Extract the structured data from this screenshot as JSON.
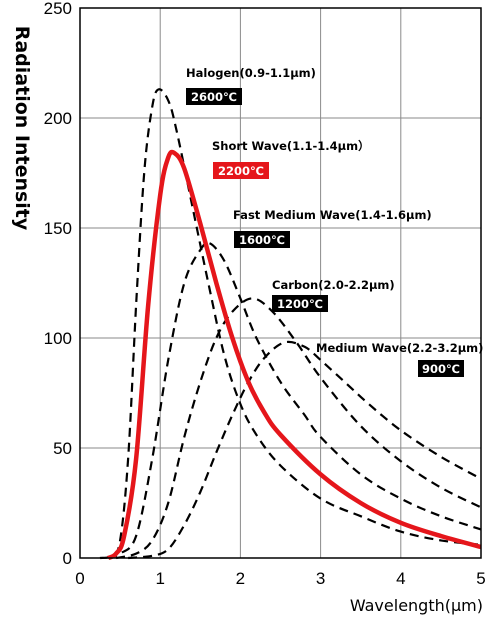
{
  "chart_data": {
    "type": "line",
    "title": "",
    "xlabel": "Wavelength(μm)",
    "ylabel": "Radiation Intensity",
    "xlim": [
      0,
      5
    ],
    "ylim": [
      0,
      250
    ],
    "x_ticks": [
      0,
      1,
      2,
      3,
      4,
      5
    ],
    "y_ticks": [
      0,
      50,
      100,
      150,
      200,
      250
    ],
    "grid": true,
    "series": [
      {
        "name": "Halogen(0.9-1.1μm)",
        "temperature_label": "2600℃",
        "style": "dashed",
        "color": "#000000",
        "label_color": "#000000",
        "peak": [
          0.98,
          213
        ],
        "points": [
          [
            0.25,
            0
          ],
          [
            0.4,
            1
          ],
          [
            0.5,
            8
          ],
          [
            0.6,
            45
          ],
          [
            0.7,
            115
          ],
          [
            0.8,
            175
          ],
          [
            0.9,
            205
          ],
          [
            0.98,
            213
          ],
          [
            1.1,
            208
          ],
          [
            1.2,
            195
          ],
          [
            1.4,
            160
          ],
          [
            1.6,
            125
          ],
          [
            1.8,
            92
          ],
          [
            2.0,
            70
          ],
          [
            2.2,
            56
          ],
          [
            2.5,
            42
          ],
          [
            3.0,
            27
          ],
          [
            3.5,
            19
          ],
          [
            4.0,
            12
          ],
          [
            4.5,
            8
          ],
          [
            5.0,
            6
          ]
        ]
      },
      {
        "name": "Short Wave(1.1-1.4μm）",
        "temperature_label": "2200℃",
        "style": "solid",
        "color": "#e5161b",
        "label_color": "#e5161b",
        "peak": [
          1.18,
          184
        ],
        "points": [
          [
            0.35,
            0
          ],
          [
            0.45,
            2
          ],
          [
            0.55,
            10
          ],
          [
            0.7,
            45
          ],
          [
            0.85,
            115
          ],
          [
            1.0,
            165
          ],
          [
            1.1,
            182
          ],
          [
            1.18,
            184
          ],
          [
            1.3,
            177
          ],
          [
            1.5,
            152
          ],
          [
            1.7,
            125
          ],
          [
            1.9,
            100
          ],
          [
            2.1,
            80
          ],
          [
            2.3,
            66
          ],
          [
            2.5,
            56
          ],
          [
            3.0,
            38
          ],
          [
            3.5,
            25
          ],
          [
            4.0,
            16
          ],
          [
            4.5,
            10
          ],
          [
            5.0,
            5
          ]
        ]
      },
      {
        "name": "Fast Medium Wave(1.4-1.6μm)",
        "temperature_label": "1600℃",
        "style": "dashed",
        "color": "#000000",
        "label_color": "#000000",
        "peak": [
          1.62,
          143
        ],
        "points": [
          [
            0.35,
            0
          ],
          [
            0.5,
            2
          ],
          [
            0.7,
            10
          ],
          [
            0.9,
            45
          ],
          [
            1.1,
            90
          ],
          [
            1.3,
            125
          ],
          [
            1.5,
            140
          ],
          [
            1.62,
            143
          ],
          [
            1.8,
            135
          ],
          [
            2.0,
            118
          ],
          [
            2.2,
            100
          ],
          [
            2.5,
            80
          ],
          [
            2.8,
            65
          ],
          [
            3.0,
            55
          ],
          [
            3.5,
            38
          ],
          [
            4.0,
            27
          ],
          [
            4.5,
            19
          ],
          [
            5.0,
            13
          ]
        ]
      },
      {
        "name": "Carbon(2.0-2.2μm)",
        "temperature_label": "1200℃",
        "style": "dashed",
        "color": "#000000",
        "label_color": "#000000",
        "peak": [
          2.15,
          118
        ],
        "points": [
          [
            0.45,
            0
          ],
          [
            0.7,
            2
          ],
          [
            0.9,
            8
          ],
          [
            1.1,
            25
          ],
          [
            1.3,
            55
          ],
          [
            1.5,
            80
          ],
          [
            1.7,
            100
          ],
          [
            1.9,
            112
          ],
          [
            2.15,
            118
          ],
          [
            2.4,
            112
          ],
          [
            2.7,
            98
          ],
          [
            3.0,
            82
          ],
          [
            3.5,
            60
          ],
          [
            4.0,
            44
          ],
          [
            4.5,
            32
          ],
          [
            5.0,
            23
          ]
        ]
      },
      {
        "name": "Medium Wave(2.2-3.2μm)",
        "temperature_label": "900℃",
        "style": "dashed",
        "color": "#000000",
        "label_color": "#000000",
        "peak": [
          2.55,
          98
        ],
        "points": [
          [
            0.6,
            0
          ],
          [
            0.9,
            1
          ],
          [
            1.1,
            4
          ],
          [
            1.3,
            15
          ],
          [
            1.5,
            30
          ],
          [
            1.7,
            48
          ],
          [
            1.9,
            65
          ],
          [
            2.1,
            80
          ],
          [
            2.3,
            91
          ],
          [
            2.55,
            98
          ],
          [
            2.8,
            96
          ],
          [
            3.0,
            90
          ],
          [
            3.3,
            80
          ],
          [
            3.6,
            70
          ],
          [
            4.0,
            58
          ],
          [
            4.5,
            46
          ],
          [
            5.0,
            36
          ]
        ]
      }
    ]
  }
}
